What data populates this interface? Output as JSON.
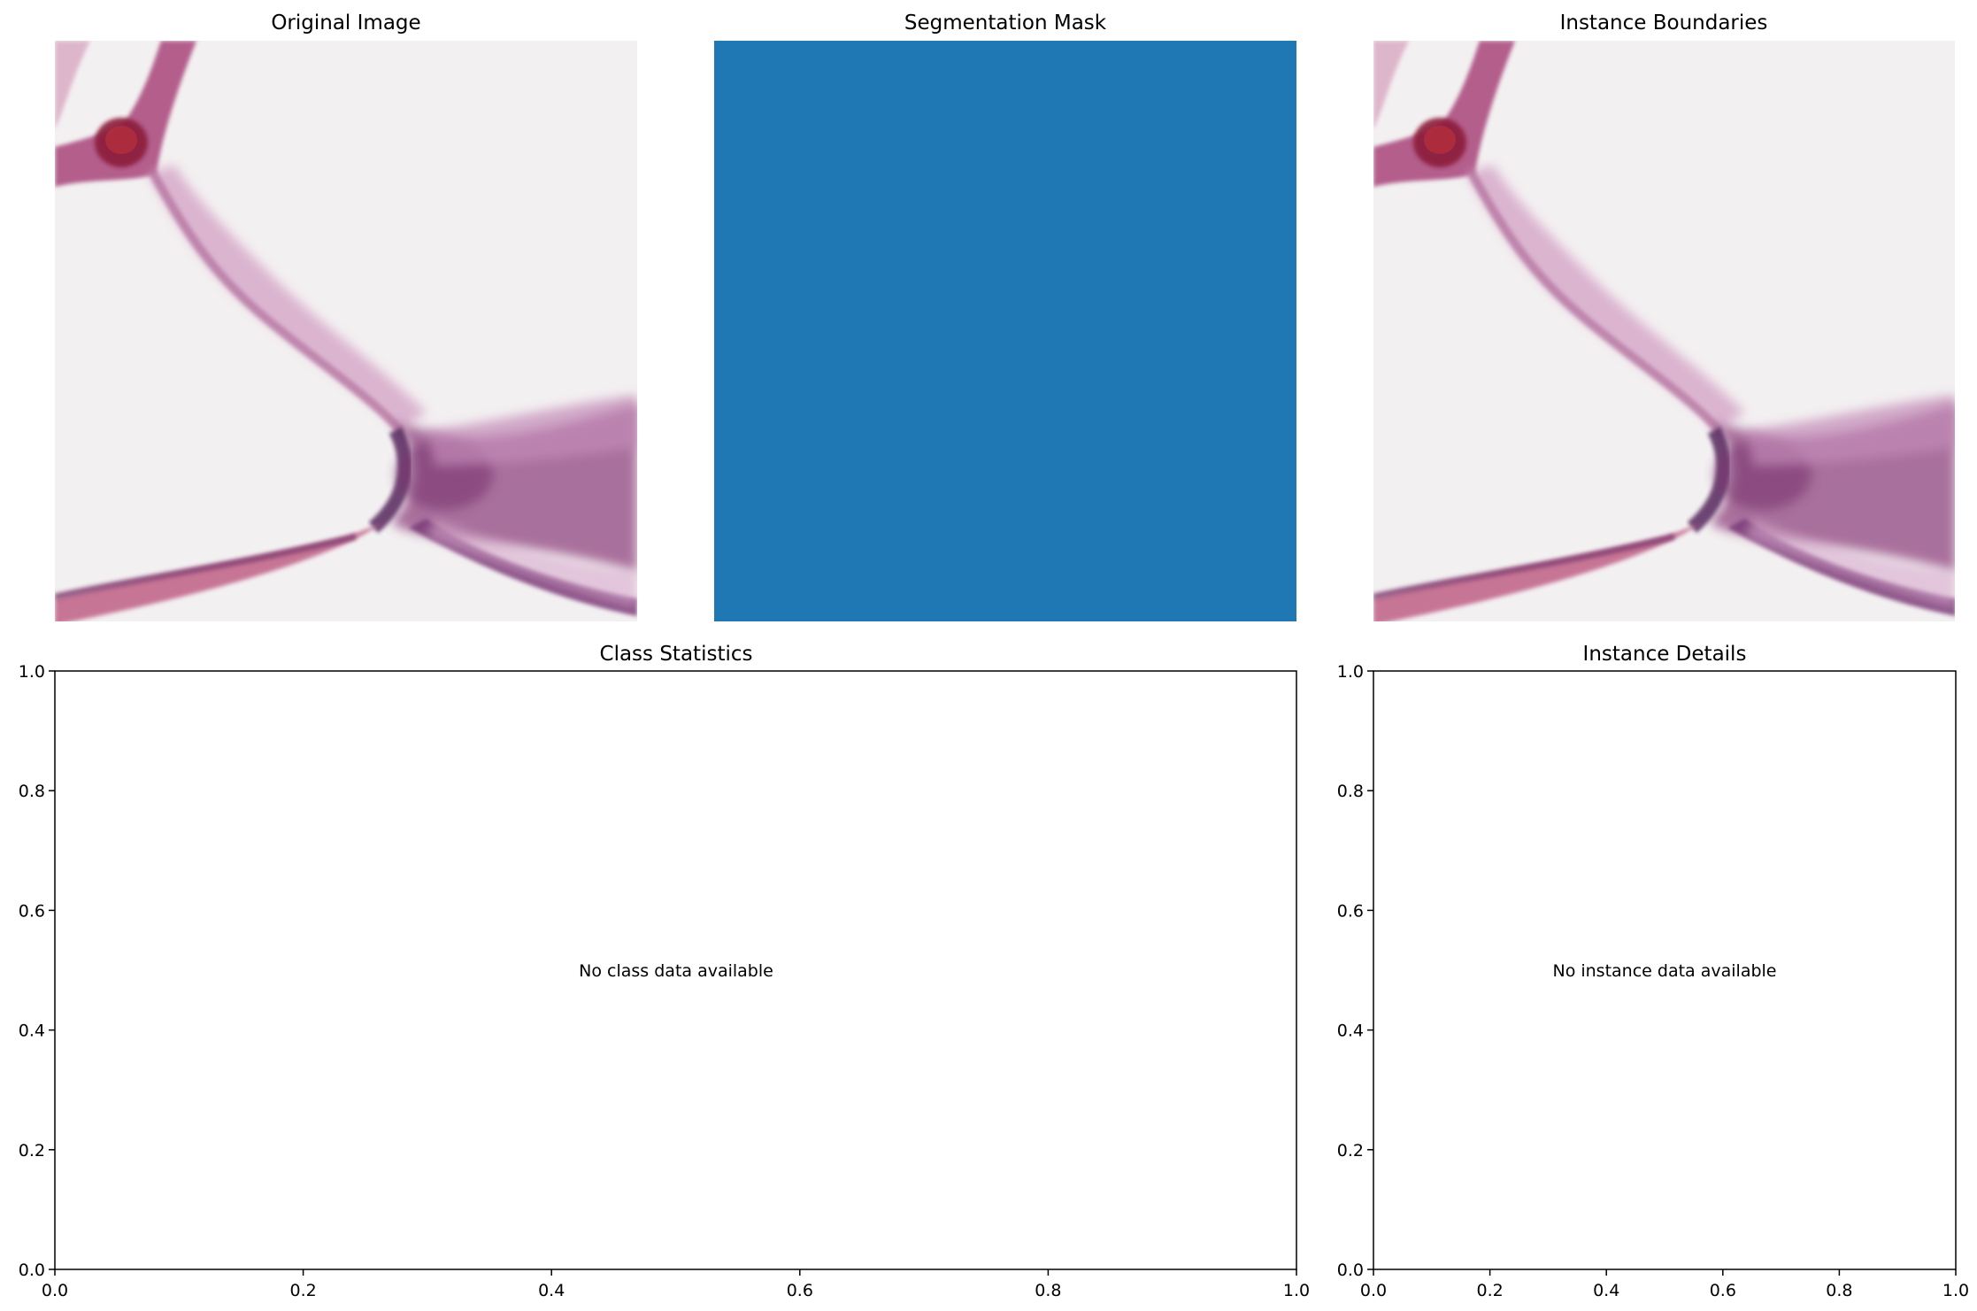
{
  "panels": {
    "original": {
      "title": "Original Image"
    },
    "mask": {
      "title": "Segmentation Mask",
      "fill_color": "#1f77b4"
    },
    "boundaries": {
      "title": "Instance Boundaries"
    },
    "class_stats": {
      "title": "Class Statistics",
      "message": "No class data available"
    },
    "instance_details": {
      "title": "Instance Details",
      "message": "No instance data available"
    }
  },
  "chart_data": [
    {
      "type": "scatter",
      "title": "Class Statistics",
      "xlim": [
        0,
        1
      ],
      "ylim": [
        0,
        1
      ],
      "x_ticks": [
        "0.0",
        "0.2",
        "0.4",
        "0.6",
        "0.8",
        "1.0"
      ],
      "y_ticks": [
        "0.0",
        "0.2",
        "0.4",
        "0.6",
        "0.8",
        "1.0"
      ],
      "annotation": "No class data available",
      "grid": false
    },
    {
      "type": "scatter",
      "title": "Instance Details",
      "xlim": [
        0,
        1
      ],
      "ylim": [
        0,
        1
      ],
      "x_ticks": [
        "0.0",
        "0.2",
        "0.4",
        "0.6",
        "0.8",
        "1.0"
      ],
      "y_ticks": [
        "0.0",
        "0.2",
        "0.4",
        "0.6",
        "0.8",
        "1.0"
      ],
      "annotation": "No instance data available",
      "grid": false
    }
  ]
}
